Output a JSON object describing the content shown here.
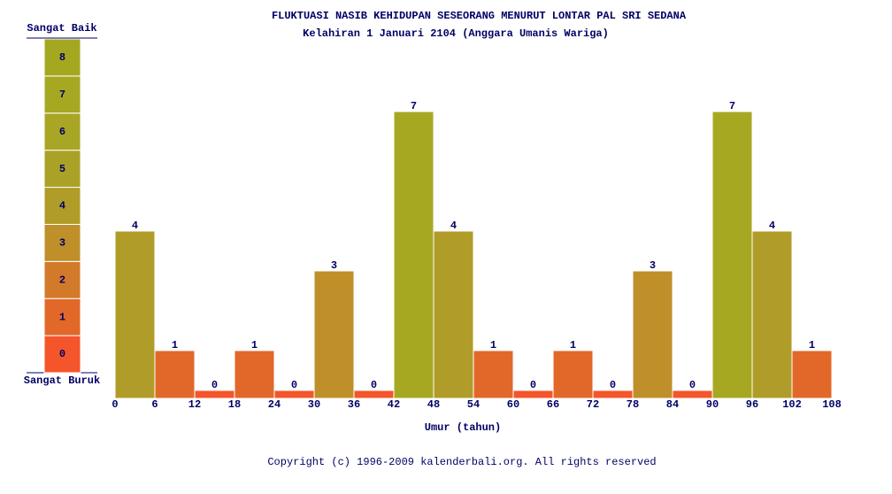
{
  "chart_data": {
    "type": "histogram",
    "title": "FLUKTUASI NASIB KEHIDUPAN SESEORANG MENURUT LONTAR PAL SRI SEDANA",
    "subtitle": "Kelahiran 1 Januari 2104 (Anggara Umanis Wariga)",
    "x_label": "Umur (tahun)",
    "footer": "Copyright (c) 1996-2009 kalenderbali.org. All rights reserved",
    "bins": [
      0,
      6,
      12,
      18,
      24,
      30,
      36,
      42,
      48,
      54,
      60,
      66,
      72,
      78,
      84,
      90,
      96,
      102,
      108
    ],
    "values": [
      4,
      1,
      0,
      1,
      0,
      3,
      0,
      7,
      4,
      1,
      0,
      1,
      0,
      3,
      0,
      7,
      4,
      1
    ],
    "xlim": [
      0,
      108
    ],
    "ylim": [
      -0.2,
      8
    ],
    "scale": {
      "top_label": "Sangat Baik",
      "bottom_label": "Sangat Buruk",
      "levels": [
        0,
        1,
        2,
        3,
        4,
        5,
        6,
        7,
        8
      ],
      "colors": [
        "#f4552a",
        "#e2682a",
        "#d27a2a",
        "#bf8f2a",
        "#b09c28",
        "#aaa226",
        "#a8a624",
        "#a6a822",
        "#a4a820"
      ]
    }
  }
}
